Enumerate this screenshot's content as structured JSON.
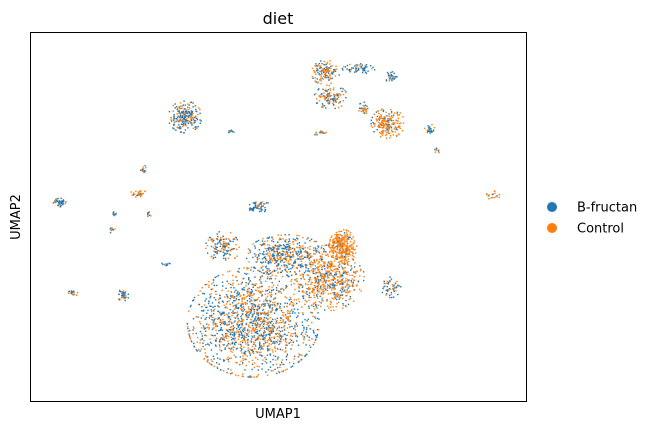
{
  "chart_data": {
    "type": "scatter",
    "title": "diet",
    "xlabel": "UMAP1",
    "ylabel": "UMAP2",
    "xlim": [
      0,
      100
    ],
    "ylim": [
      0,
      100
    ],
    "ticks": "none",
    "grid": false,
    "legend_position": "right-center",
    "legend": [
      {
        "label": "B-fructan",
        "color": "#1f77b4"
      },
      {
        "label": "Control",
        "color": "#ff7f0e"
      }
    ],
    "clusters": [
      {
        "cx": 44.9,
        "cy": 21.4,
        "rx": 13.3,
        "ry": 14.9,
        "n": 1500,
        "orange": 0.48
      },
      {
        "cx": 60.4,
        "cy": 33.5,
        "rx": 6.9,
        "ry": 8.9,
        "n": 600,
        "orange": 0.72
      },
      {
        "cx": 51.6,
        "cy": 39.5,
        "rx": 8.1,
        "ry": 5.7,
        "n": 450,
        "orange": 0.45
      },
      {
        "cx": 63.0,
        "cy": 42.0,
        "rx": 2.8,
        "ry": 4.6,
        "n": 300,
        "orange": 0.95
      },
      {
        "cx": 38.9,
        "cy": 42.0,
        "rx": 3.6,
        "ry": 4.1,
        "n": 140,
        "orange": 0.5
      },
      {
        "cx": 45.9,
        "cy": 52.8,
        "rx": 2.4,
        "ry": 1.8,
        "n": 60,
        "orange": 0.15
      },
      {
        "cx": 72.7,
        "cy": 31.0,
        "rx": 2.0,
        "ry": 2.9,
        "n": 50,
        "orange": 0.4
      },
      {
        "cx": 31.1,
        "cy": 77.2,
        "rx": 3.4,
        "ry": 4.3,
        "n": 220,
        "orange": 0.3
      },
      {
        "cx": 40.4,
        "cy": 73.2,
        "rx": 0.6,
        "ry": 0.5,
        "n": 12,
        "orange": 0.4
      },
      {
        "cx": 59.5,
        "cy": 89.2,
        "rx": 2.8,
        "ry": 3.4,
        "n": 130,
        "orange": 0.62
      },
      {
        "cx": 60.6,
        "cy": 82.6,
        "rx": 3.4,
        "ry": 3.2,
        "n": 120,
        "orange": 0.55
      },
      {
        "cx": 66.5,
        "cy": 90.3,
        "rx": 3.6,
        "ry": 1.4,
        "n": 60,
        "orange": 0.2
      },
      {
        "cx": 72.7,
        "cy": 88.1,
        "rx": 1.4,
        "ry": 1.4,
        "n": 30,
        "orange": 0.2
      },
      {
        "cx": 67.3,
        "cy": 79.6,
        "rx": 1.2,
        "ry": 1.6,
        "n": 30,
        "orange": 0.5
      },
      {
        "cx": 72.1,
        "cy": 75.5,
        "rx": 3.4,
        "ry": 4.1,
        "n": 200,
        "orange": 0.75
      },
      {
        "cx": 80.5,
        "cy": 73.6,
        "rx": 1.4,
        "ry": 1.6,
        "n": 25,
        "orange": 0.4
      },
      {
        "cx": 81.9,
        "cy": 68.1,
        "rx": 0.8,
        "ry": 0.8,
        "n": 10,
        "orange": 0.5
      },
      {
        "cx": 58.4,
        "cy": 72.8,
        "rx": 1.6,
        "ry": 0.7,
        "n": 15,
        "orange": 0.5
      },
      {
        "cx": 93.5,
        "cy": 55.7,
        "rx": 1.6,
        "ry": 1.4,
        "n": 18,
        "orange": 0.6
      },
      {
        "cx": 5.9,
        "cy": 53.7,
        "rx": 1.4,
        "ry": 1.4,
        "n": 50,
        "orange": 0.1
      },
      {
        "cx": 22.7,
        "cy": 63.1,
        "rx": 0.6,
        "ry": 1.1,
        "n": 14,
        "orange": 0.5
      },
      {
        "cx": 21.7,
        "cy": 56.4,
        "rx": 1.6,
        "ry": 1.0,
        "n": 30,
        "orange": 0.6
      },
      {
        "cx": 23.9,
        "cy": 50.7,
        "rx": 0.6,
        "ry": 0.8,
        "n": 8,
        "orange": 0.3
      },
      {
        "cx": 17.0,
        "cy": 50.7,
        "rx": 0.8,
        "ry": 0.8,
        "n": 10,
        "orange": 0.4
      },
      {
        "cx": 16.4,
        "cy": 46.4,
        "rx": 0.8,
        "ry": 0.8,
        "n": 10,
        "orange": 0.5
      },
      {
        "cx": 18.6,
        "cy": 28.8,
        "rx": 1.2,
        "ry": 1.6,
        "n": 40,
        "orange": 0.4
      },
      {
        "cx": 8.5,
        "cy": 29.3,
        "rx": 1.0,
        "ry": 0.8,
        "n": 20,
        "orange": 0.4
      },
      {
        "cx": 27.1,
        "cy": 37.2,
        "rx": 1.0,
        "ry": 0.6,
        "n": 10,
        "orange": 0.4
      }
    ]
  }
}
